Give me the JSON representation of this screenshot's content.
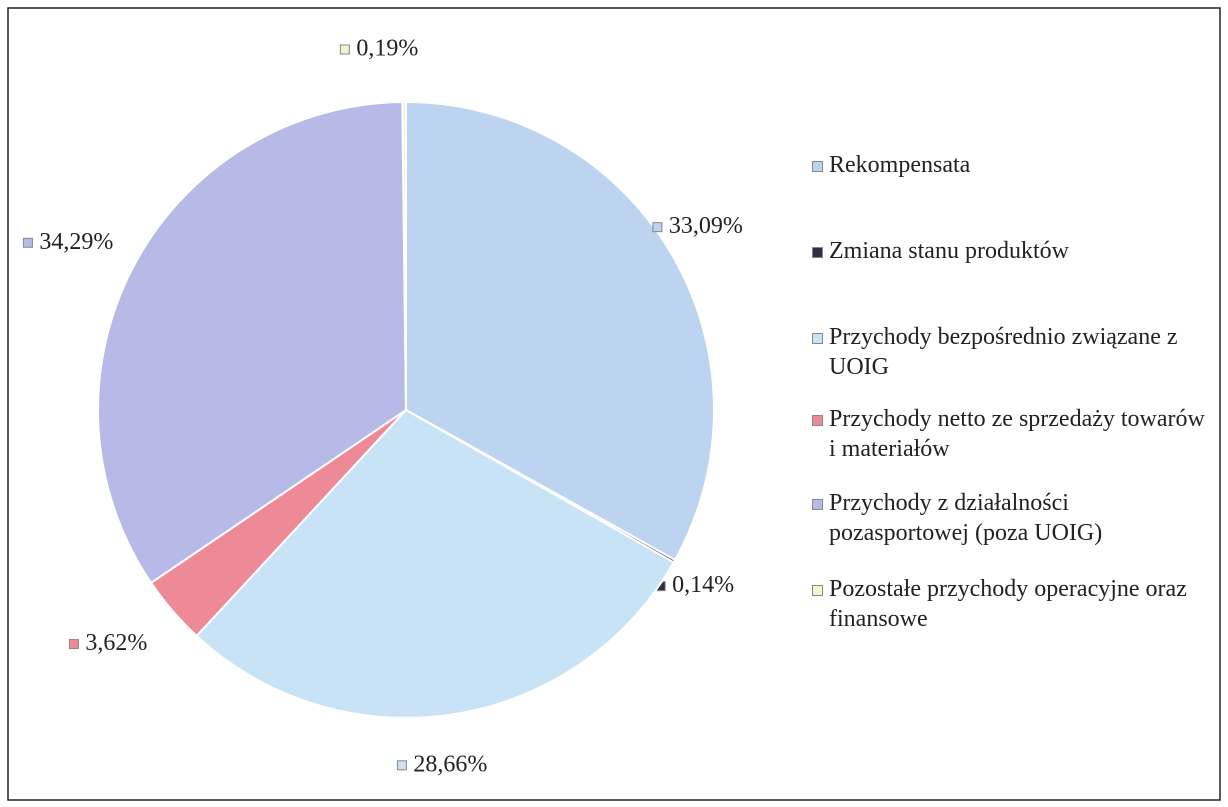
{
  "chart_data": {
    "type": "pie",
    "categories": [
      "Rekompensata",
      "Zmiana stanu produktów",
      "Przychody bezpośrednio związane z UOIG",
      "Przychody netto ze sprzedaży towarów i materiałów",
      "Przychody z działalności pozasportowej (poza UOIG)",
      "Pozostałe przychody operacyjne oraz finansowe"
    ],
    "values": [
      33.09,
      0.14,
      28.66,
      3.62,
      34.29,
      0.19
    ],
    "value_labels": [
      "33,09%",
      "0,14%",
      "28,66%",
      "3,62%",
      "34,29%",
      "0,19%"
    ],
    "colors": [
      "#bcd4ef",
      "#2e2e44",
      "#c8e3f5",
      "#ee8a98",
      "#b7b9e6",
      "#f3f3cf"
    ],
    "legend": "right"
  }
}
